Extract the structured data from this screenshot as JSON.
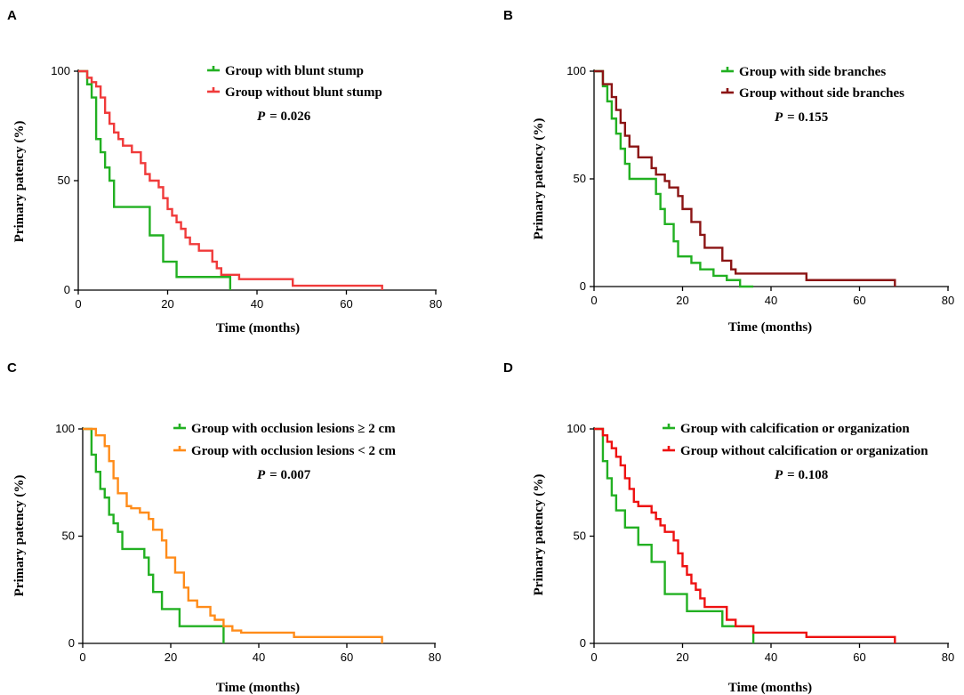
{
  "chart_data": [
    {
      "type": "line",
      "panel": "A",
      "xlabel": "Time (months)",
      "ylabel": "Primary patency (%)",
      "xlim": [
        0,
        80
      ],
      "ylim": [
        0,
        100
      ],
      "xticks": [
        0,
        20,
        40,
        60,
        80
      ],
      "yticks": [
        0,
        50,
        100
      ],
      "legend_position": "top-right",
      "p_label": "P",
      "p_value": "= 0.026",
      "series": [
        {
          "name": "Group with blunt stump",
          "color": "#22b022",
          "x": [
            0,
            2,
            3,
            4,
            5,
            6,
            7,
            8,
            16,
            19,
            22,
            34
          ],
          "y": [
            100,
            94,
            88,
            69,
            63,
            56,
            50,
            38,
            25,
            13,
            6,
            0
          ]
        },
        {
          "name": "Group without blunt stump",
          "color": "#f03a3a",
          "x": [
            0,
            2,
            3,
            4,
            5,
            6,
            7,
            8,
            9,
            10,
            12,
            14,
            15,
            16,
            18,
            19,
            20,
            21,
            22,
            23,
            24,
            25,
            27,
            30,
            31,
            32,
            36,
            48,
            68
          ],
          "y": [
            100,
            97,
            95,
            93,
            88,
            81,
            76,
            72,
            69,
            66,
            63,
            58,
            53,
            50,
            47,
            42,
            37,
            34,
            31,
            28,
            24,
            21,
            18,
            13,
            10,
            7,
            5,
            2,
            0
          ]
        }
      ]
    },
    {
      "type": "line",
      "panel": "B",
      "xlabel": "Time (months)",
      "ylabel": "Primary patency (%)",
      "xlim": [
        0,
        80
      ],
      "ylim": [
        0,
        100
      ],
      "xticks": [
        0,
        20,
        40,
        60,
        80
      ],
      "yticks": [
        0,
        50,
        100
      ],
      "legend_position": "top-right",
      "p_label": "P",
      "p_value": "= 0.155",
      "series": [
        {
          "name": "Group with side branches",
          "color": "#22b022",
          "x": [
            0,
            2,
            3,
            4,
            5,
            6,
            7,
            8,
            14,
            15,
            16,
            18,
            19,
            22,
            24,
            27,
            30,
            33,
            36
          ],
          "y": [
            100,
            93,
            86,
            78,
            71,
            64,
            57,
            50,
            43,
            36,
            29,
            21,
            14,
            11,
            8,
            5,
            3,
            0,
            0
          ]
        },
        {
          "name": "Group without side branches",
          "color": "#8b1414",
          "x": [
            0,
            2,
            4,
            5,
            6,
            7,
            8,
            10,
            13,
            14,
            16,
            17,
            19,
            20,
            22,
            24,
            25,
            29,
            31,
            32,
            48,
            68
          ],
          "y": [
            100,
            94,
            88,
            82,
            76,
            70,
            65,
            60,
            55,
            52,
            49,
            46,
            42,
            36,
            30,
            24,
            18,
            12,
            8,
            6,
            3,
            0
          ]
        }
      ]
    },
    {
      "type": "line",
      "panel": "C",
      "xlabel": "Time (months)",
      "ylabel": "Primary patency (%)",
      "xlim": [
        0,
        80
      ],
      "ylim": [
        0,
        100
      ],
      "xticks": [
        0,
        20,
        40,
        60,
        80
      ],
      "yticks": [
        0,
        50,
        100
      ],
      "legend_position": "top-right",
      "p_label": "P",
      "p_value": "= 0.007",
      "series": [
        {
          "name": "Group with occlusion lesions ≥ 2 cm",
          "color": "#22b022",
          "x": [
            0,
            2,
            3,
            4,
            5,
            6,
            7,
            8,
            9,
            10,
            14,
            15,
            16,
            18,
            22,
            32
          ],
          "y": [
            100,
            88,
            80,
            72,
            68,
            60,
            56,
            52,
            44,
            44,
            40,
            32,
            24,
            16,
            8,
            0
          ]
        },
        {
          "name": "Group with occlusion lesions < 2 cm",
          "color": "#ff8c1a",
          "x": [
            0,
            3,
            5,
            6,
            7,
            8,
            10,
            11,
            13,
            15,
            16,
            18,
            19,
            21,
            23,
            24,
            26,
            29,
            30,
            32,
            34,
            36,
            48,
            68
          ],
          "y": [
            100,
            97,
            92,
            85,
            77,
            70,
            64,
            63,
            61,
            58,
            53,
            48,
            40,
            33,
            26,
            20,
            17,
            13,
            11,
            8,
            6,
            5,
            3,
            0
          ]
        }
      ]
    },
    {
      "type": "line",
      "panel": "D",
      "xlabel": "Time (months)",
      "ylabel": "Primary patency (%)",
      "xlim": [
        0,
        80
      ],
      "ylim": [
        0,
        100
      ],
      "xticks": [
        0,
        20,
        40,
        60,
        80
      ],
      "yticks": [
        0,
        50,
        100
      ],
      "legend_position": "top-right",
      "p_label": "P",
      "p_value": "= 0.108",
      "series": [
        {
          "name": "Group with calcification or organization",
          "color": "#22b022",
          "x": [
            0,
            2,
            3,
            4,
            5,
            7,
            10,
            13,
            16,
            21,
            29,
            36
          ],
          "y": [
            100,
            85,
            77,
            69,
            62,
            54,
            46,
            38,
            23,
            15,
            8,
            0
          ]
        },
        {
          "name": "Group without calcification or organization",
          "color": "#ee1111",
          "x": [
            0,
            2,
            3,
            4,
            5,
            6,
            7,
            8,
            9,
            10,
            13,
            14,
            15,
            16,
            18,
            19,
            20,
            21,
            22,
            23,
            24,
            25,
            30,
            32,
            36,
            48,
            68
          ],
          "y": [
            100,
            97,
            94,
            91,
            87,
            83,
            77,
            72,
            66,
            64,
            61,
            58,
            55,
            52,
            48,
            42,
            36,
            32,
            28,
            25,
            21,
            17,
            11,
            8,
            5,
            3,
            0
          ]
        }
      ]
    }
  ]
}
